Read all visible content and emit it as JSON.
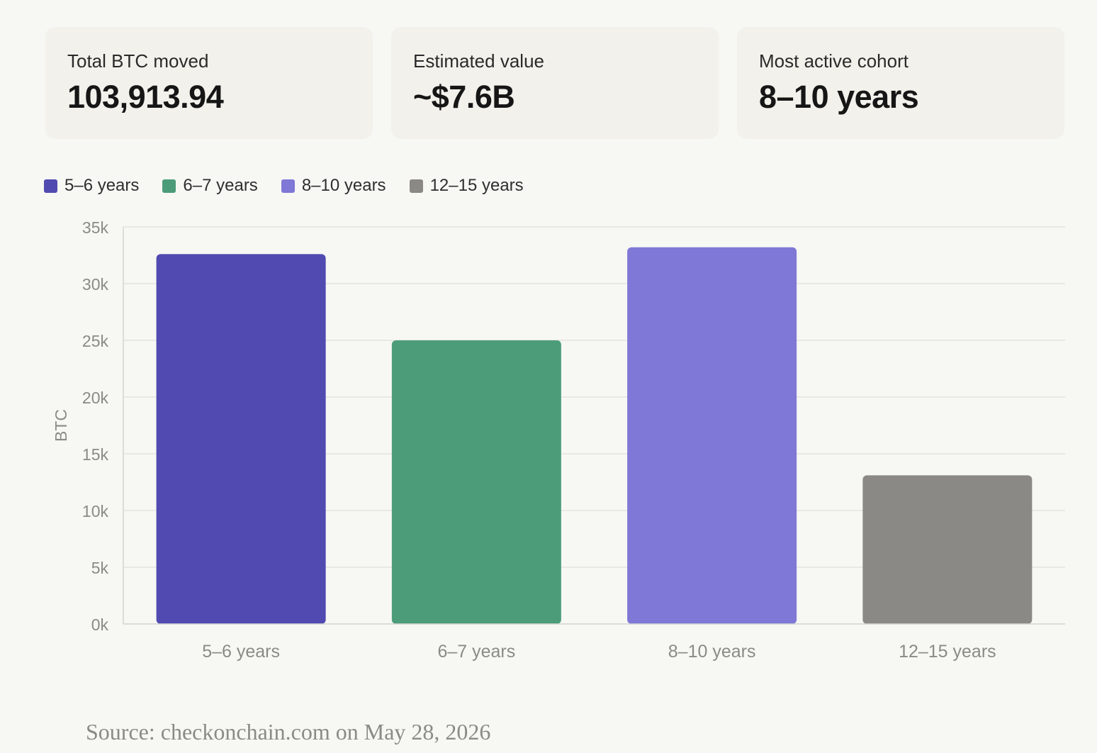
{
  "stats": [
    {
      "label": "Total BTC moved",
      "value": "103,913.94"
    },
    {
      "label": "Estimated value",
      "value": "~$7.6B"
    },
    {
      "label": "Most active cohort",
      "value": "8–10 years"
    }
  ],
  "colors": {
    "series": [
      "#514ab0",
      "#4c9c7a",
      "#7f78d6",
      "#8a8985"
    ],
    "grid": "#e4e4e0",
    "tick_text": "#8a8a86",
    "axis": "#d4d4d0"
  },
  "chart_data": {
    "type": "bar",
    "categories": [
      "5–6 years",
      "6–7 years",
      "8–10 years",
      "12–15 years"
    ],
    "values": [
      32600,
      25000,
      33200,
      13100
    ],
    "legend": [
      "5–6 years",
      "6–7 years",
      "8–10 years",
      "12–15 years"
    ],
    "legend_position": "top-left",
    "ylabel": "BTC",
    "xlabel": "",
    "ylim": [
      0,
      35000
    ],
    "yticks": [
      0,
      5000,
      10000,
      15000,
      20000,
      25000,
      30000,
      35000
    ],
    "ytick_labels": [
      "0k",
      "5k",
      "10k",
      "15k",
      "20k",
      "25k",
      "30k",
      "35k"
    ],
    "grid": true
  },
  "source": "Source: checkonchain.com on May 28, 2026"
}
